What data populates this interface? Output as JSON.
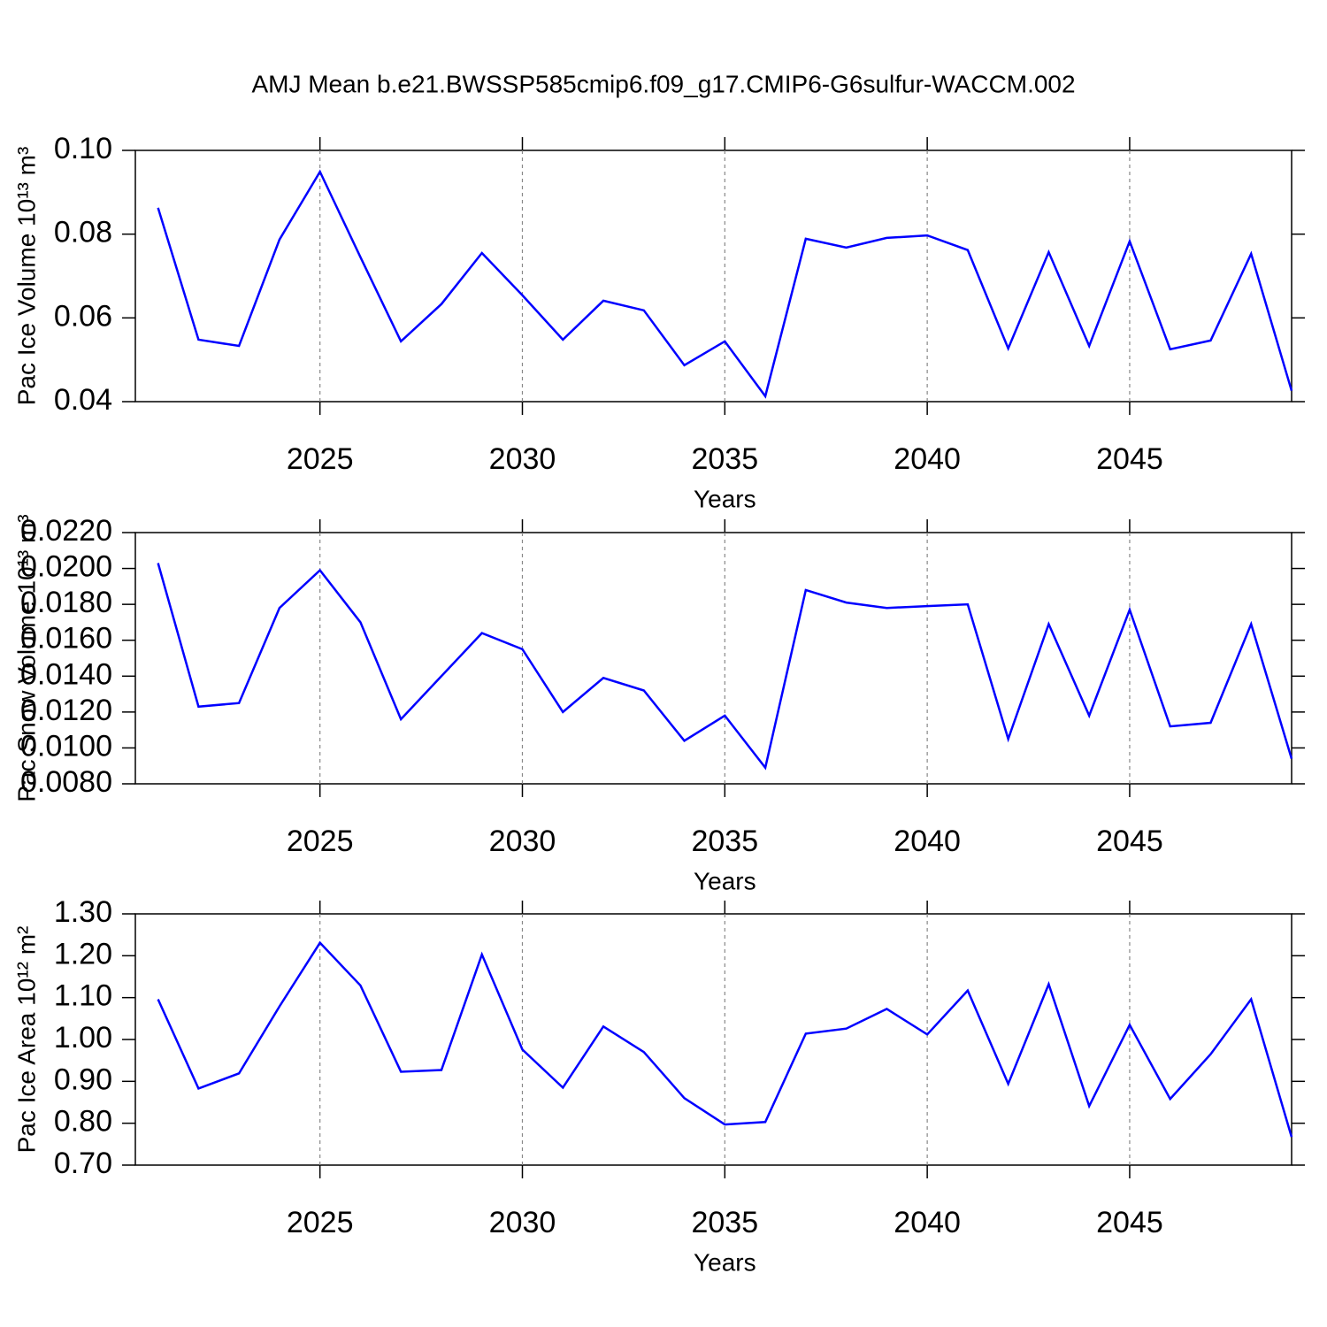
{
  "chart_data": [
    {
      "type": "line",
      "title": "AMJ Mean b.e21.BWSSP585cmip6.f09_g17.CMIP6-G6sulfur-WACCM.002",
      "ylabel": "Pac Ice Volume 10¹³ m³",
      "xlabel": "Years",
      "x": [
        2021,
        2022,
        2023,
        2024,
        2025,
        2026,
        2027,
        2028,
        2029,
        2030,
        2031,
        2032,
        2033,
        2034,
        2035,
        2036,
        2037,
        2038,
        2039,
        2040,
        2041,
        2042,
        2043,
        2044,
        2045,
        2046,
        2047,
        2048,
        2049
      ],
      "values": [
        0.0863,
        0.0548,
        0.0533,
        0.0787,
        0.0949,
        0.0745,
        0.0544,
        0.0633,
        0.0755,
        0.0654,
        0.0548,
        0.0641,
        0.0618,
        0.0487,
        0.0544,
        0.0413,
        0.0789,
        0.0768,
        0.0791,
        0.0797,
        0.0762,
        0.0527,
        0.0757,
        0.0533,
        0.0783,
        0.0525,
        0.0546,
        0.0753,
        0.0426
      ],
      "color": "#0000ff",
      "xlim": [
        2020.44,
        2049
      ],
      "ylim": [
        0.04,
        0.1
      ],
      "xticks": [
        2025,
        2030,
        2035,
        2040,
        2045
      ],
      "yticks": [
        0.04,
        0.06,
        0.08,
        {
          "value": 0.1,
          "label": "0.10"
        }
      ],
      "grid": "x-dashed"
    },
    {
      "type": "line",
      "ylabel": "Pac Snow Volume 10¹³ m³",
      "xlabel": "Years",
      "x": [
        2021,
        2022,
        2023,
        2024,
        2025,
        2026,
        2027,
        2028,
        2029,
        2030,
        2031,
        2032,
        2033,
        2034,
        2035,
        2036,
        2037,
        2038,
        2039,
        2040,
        2041,
        2042,
        2043,
        2044,
        2045,
        2046,
        2047,
        2048,
        2049
      ],
      "values": [
        0.0203,
        0.0123,
        0.0125,
        0.0178,
        0.0199,
        0.017,
        0.0116,
        0.014,
        0.0164,
        0.0155,
        0.012,
        0.0139,
        0.0132,
        0.0104,
        0.0118,
        0.0089,
        0.0188,
        0.0181,
        0.0178,
        0.0179,
        0.018,
        0.0105,
        0.0169,
        0.0118,
        0.0177,
        0.0112,
        0.0114,
        0.0169,
        0.0094
      ],
      "color": "#0000ff",
      "xlim": [
        2020.44,
        2049
      ],
      "ylim": [
        0.008,
        0.022
      ],
      "xticks": [
        2025,
        2030,
        2035,
        2040,
        2045
      ],
      "yticks": [
        {
          "value": 0.008,
          "label": "0.0080"
        },
        {
          "value": 0.01,
          "label": "0.0100"
        },
        {
          "value": 0.012,
          "label": "0.0120"
        },
        {
          "value": 0.014,
          "label": "0.0140"
        },
        {
          "value": 0.016,
          "label": "0.0160"
        },
        {
          "value": 0.018,
          "label": "0.0180"
        },
        {
          "value": 0.02,
          "label": "0.0200"
        },
        {
          "value": 0.022,
          "label": "0.0220"
        }
      ],
      "grid": "x-dashed"
    },
    {
      "type": "line",
      "ylabel": "Pac Ice Area 10¹² m²",
      "xlabel": "Years",
      "x": [
        2021,
        2022,
        2023,
        2024,
        2025,
        2026,
        2027,
        2028,
        2029,
        2030,
        2031,
        2032,
        2033,
        2034,
        2035,
        2036,
        2037,
        2038,
        2039,
        2040,
        2041,
        2042,
        2043,
        2044,
        2045,
        2046,
        2047,
        2048,
        2049
      ],
      "values": [
        1.096,
        0.883,
        0.919,
        1.079,
        1.231,
        1.129,
        0.923,
        0.927,
        1.203,
        0.976,
        0.885,
        1.031,
        0.97,
        0.86,
        0.797,
        0.803,
        1.014,
        1.026,
        1.073,
        1.012,
        1.117,
        0.894,
        1.132,
        0.841,
        1.035,
        0.858,
        0.965,
        1.096,
        0.767
      ],
      "color": "#0000ff",
      "xlim": [
        2020.44,
        2049
      ],
      "ylim": [
        0.7,
        1.3
      ],
      "xticks": [
        2025,
        2030,
        2035,
        2040,
        2045
      ],
      "yticks": [
        {
          "value": 0.7,
          "label": "0.70"
        },
        {
          "value": 0.8,
          "label": "0.80"
        },
        {
          "value": 0.9,
          "label": "0.90"
        },
        {
          "value": 1.0,
          "label": "1.00"
        },
        {
          "value": 1.1,
          "label": "1.10"
        },
        {
          "value": 1.2,
          "label": "1.20"
        },
        {
          "value": 1.3,
          "label": "1.30"
        }
      ],
      "grid": "x-dashed"
    }
  ]
}
